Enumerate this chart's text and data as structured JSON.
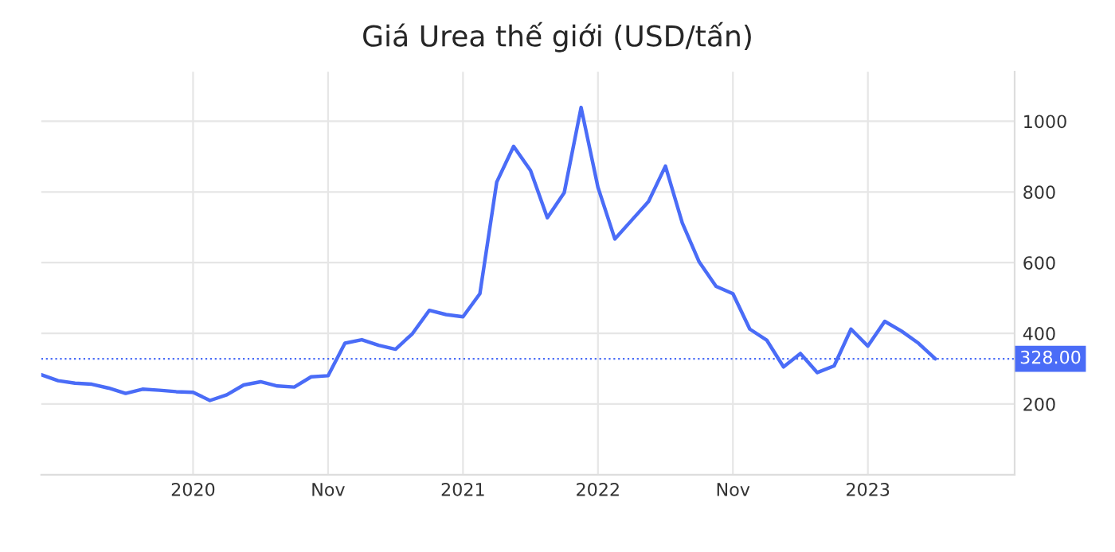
{
  "chart_data": {
    "type": "line",
    "title": "Giá Urea thế giới (USD/tấn)",
    "categories": [
      null,
      null,
      null,
      null,
      null,
      null,
      null,
      null,
      null,
      "2020",
      null,
      null,
      null,
      null,
      null,
      null,
      null,
      "Nov",
      null,
      null,
      null,
      null,
      null,
      null,
      null,
      "2021",
      null,
      null,
      null,
      null,
      null,
      null,
      null,
      "2022",
      null,
      null,
      null,
      null,
      null,
      null,
      null,
      "Nov",
      null,
      null,
      null,
      null,
      null,
      null,
      null,
      "2023",
      null,
      null,
      null,
      null,
      null,
      null,
      null,
      null
    ],
    "series": [
      {
        "color": "#4a6cf7",
        "values": [
          283,
          266,
          259,
          256,
          245,
          230,
          242,
          239,
          235,
          233,
          210,
          226,
          254,
          263,
          251,
          248,
          277,
          280,
          372,
          382,
          366,
          355,
          399,
          465,
          453,
          447,
          512,
          828,
          929,
          861,
          727,
          798,
          1039,
          813,
          667,
          720,
          773,
          873,
          712,
          602,
          533,
          512,
          412,
          381,
          305,
          343,
          289,
          308,
          412,
          364,
          434,
          406,
          372,
          328,
          null,
          null,
          null,
          null
        ]
      }
    ],
    "ylim": [
      0,
      1140
    ],
    "yticks": [
      200,
      400,
      600,
      800,
      1000
    ],
    "ref_lines": [
      {
        "axis": "y",
        "value": 328,
        "label": "328.00",
        "color": "#4a6cf7",
        "line_style": "dotted"
      }
    ],
    "grid": true,
    "marker": "none",
    "line_style": "solid"
  }
}
